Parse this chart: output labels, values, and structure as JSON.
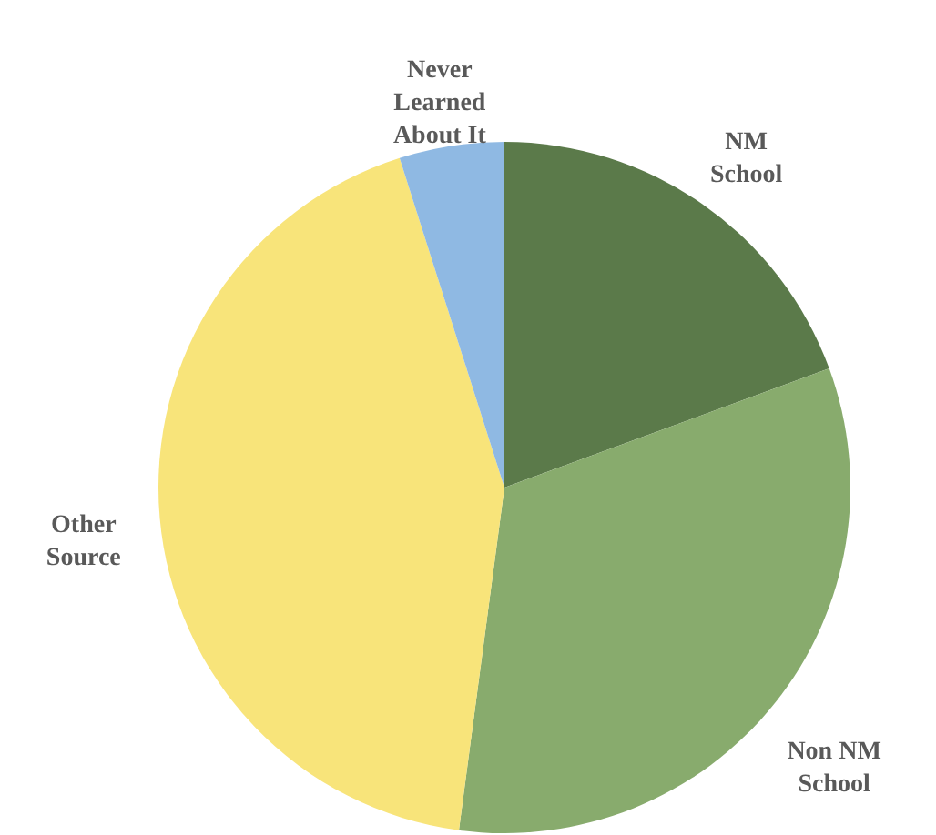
{
  "chart_data": {
    "type": "pie",
    "categories": [
      "NM School",
      "Non NM School",
      "Other Source",
      "Never Learned About It"
    ],
    "values": [
      19.4,
      32.7,
      43.0,
      4.9
    ],
    "colors": [
      "#5b7a4a",
      "#88ab6d",
      "#f8e47a",
      "#8fb9e3"
    ]
  }
}
